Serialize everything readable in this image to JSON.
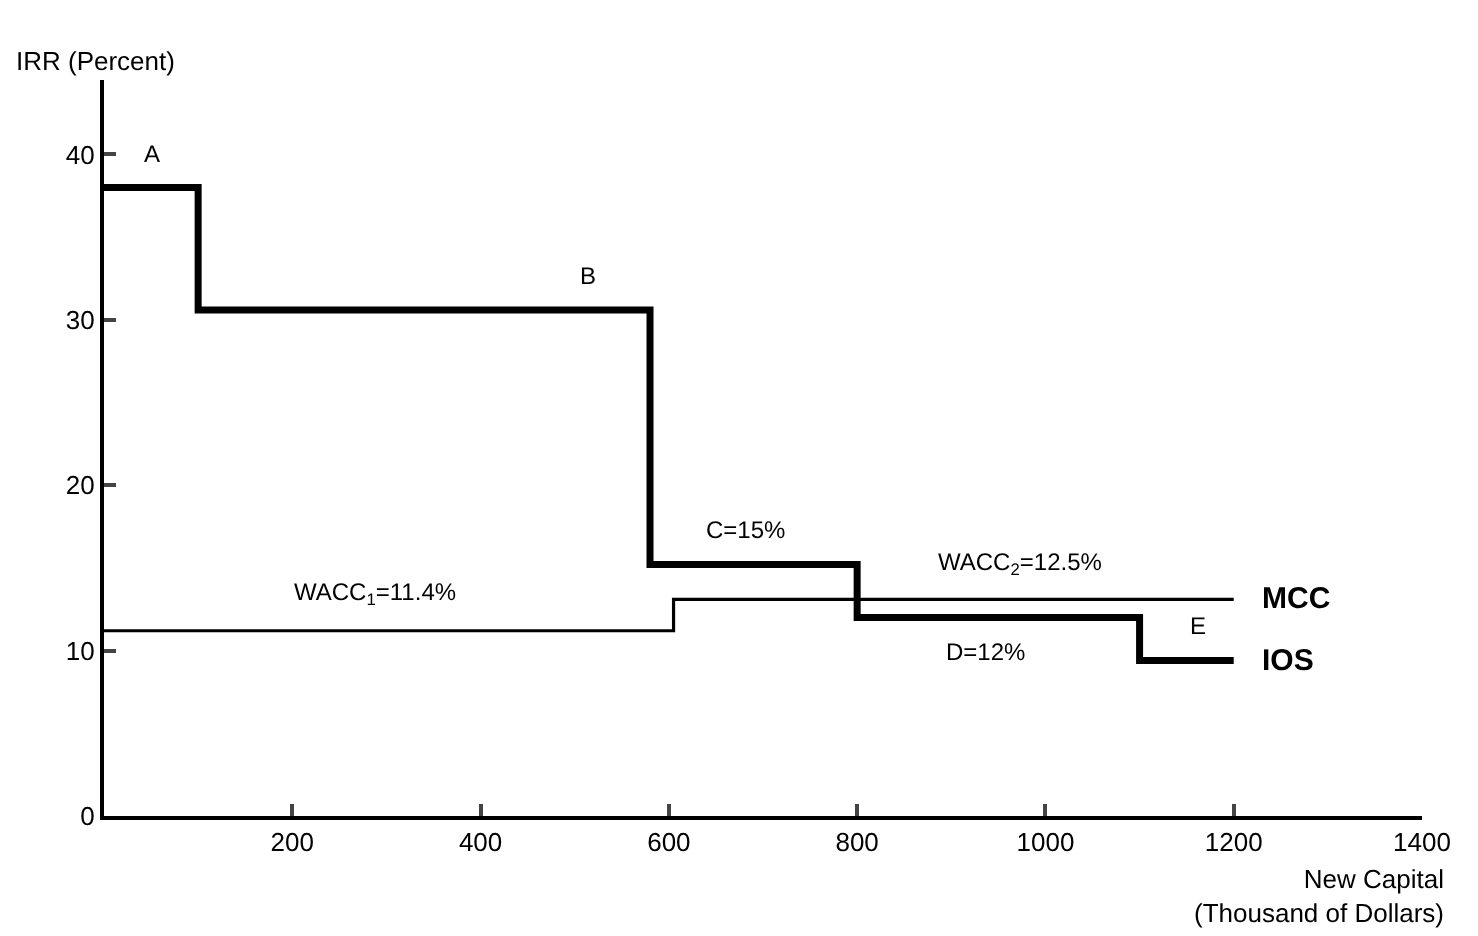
{
  "chart_data": {
    "type": "step",
    "xlabel": "New Capital\n(Thousand of Dollars)",
    "ylabel": "IRR (Percent)",
    "xlim": [
      0,
      1400
    ],
    "xticks": [
      200,
      400,
      600,
      800,
      1000,
      1200,
      1400
    ],
    "ylim": [
      0,
      44.5
    ],
    "yticks": [
      0,
      10,
      20,
      30,
      40
    ],
    "legend": false,
    "marker": "none",
    "line_style": "solid",
    "series": [
      {
        "name": "IOS",
        "color": "#000000",
        "x": [
          0,
          100,
          580,
          800,
          1100,
          1200
        ],
        "values": [
          38,
          30.6,
          15.2,
          12,
          9.4,
          9.4
        ]
      },
      {
        "name": "MCC",
        "color": "#000000",
        "x": [
          0,
          605,
          1200
        ],
        "values": [
          11.2,
          13.1,
          13.1
        ]
      }
    ],
    "annotations": [
      {
        "text": "A",
        "x": 50,
        "y": 38
      },
      {
        "text": "B",
        "x": 514,
        "y": 30.6
      },
      {
        "text": "C=15%",
        "x": 681,
        "y": 15.2
      },
      {
        "text": "WACC$_{1}$=11.4%",
        "x": 288,
        "y": 11.2
      },
      {
        "text": "WACC$_{2}$=12.5%",
        "x": 974,
        "y": 13.1
      },
      {
        "text": "D=12%",
        "x": 936,
        "y": 12
      },
      {
        "text": "E",
        "x": 1162,
        "y": 9.4
      }
    ]
  }
}
